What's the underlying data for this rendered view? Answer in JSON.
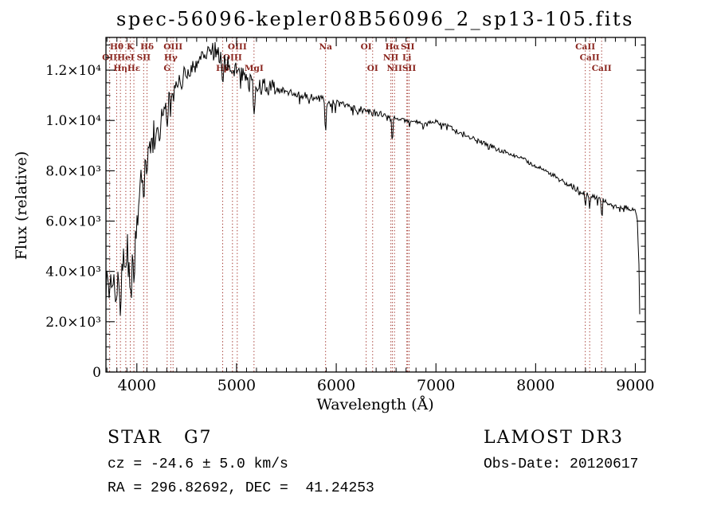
{
  "footer": {
    "class_label": "STAR   G7",
    "survey": "LAMOST DR3",
    "cz": "cz = -24.6 ± 5.0 km/s",
    "obs_date": "Obs-Date: 20120617",
    "coords": "RA = 296.82692, DEC =  41.24253"
  },
  "chart_data": {
    "type": "line",
    "title": "spec-56096-kepler08B56096_2_sp13-105.fits",
    "xlabel": "Wavelength (Å)",
    "ylabel": "Flux (relative)",
    "xlim": [
      3690,
      9100
    ],
    "ylim": [
      0,
      13300
    ],
    "grid": false,
    "x_ticks": [
      4000,
      5000,
      6000,
      7000,
      8000,
      9000
    ],
    "x_minor_step": 100,
    "y_ticks": [
      [
        0,
        "0"
      ],
      [
        2000,
        "2.0×10³"
      ],
      [
        4000,
        "4.0×10³"
      ],
      [
        6000,
        "6.0×10³"
      ],
      [
        8000,
        "8.0×10³"
      ],
      [
        10000,
        "1.0×10⁴"
      ],
      [
        12000,
        "1.2×10⁴"
      ]
    ],
    "y_minor_step": 500,
    "line_color": "#000000",
    "marker_color": "#a03028",
    "label_color": "#8a251e",
    "spectral_lines": [
      {
        "label": "Hθ",
        "wavelength": 3798,
        "row": 0
      },
      {
        "label": "K",
        "wavelength": 3934,
        "row": 0
      },
      {
        "label": "Hδ",
        "wavelength": 4102,
        "row": 0
      },
      {
        "label": "OIII",
        "wavelength": 4363,
        "row": 0
      },
      {
        "label": "OIII",
        "wavelength": 5007,
        "row": 0
      },
      {
        "label": "Na",
        "wavelength": 5893,
        "row": 0
      },
      {
        "label": "OI",
        "wavelength": 6300,
        "row": 0
      },
      {
        "label": "Hα",
        "wavelength": 6563,
        "row": 0
      },
      {
        "label": "SII",
        "wavelength": 6716,
        "row": 0
      },
      {
        "label": "CaII",
        "wavelength": 8498,
        "row": 0
      },
      {
        "label": "OII",
        "wavelength": 3727,
        "row": 1
      },
      {
        "label": "HeI",
        "wavelength": 3889,
        "row": 1
      },
      {
        "label": "SII",
        "wavelength": 4068,
        "row": 1
      },
      {
        "label": "Hγ",
        "wavelength": 4340,
        "row": 1
      },
      {
        "label": "OIII",
        "wavelength": 4959,
        "row": 1
      },
      {
        "label": "NII",
        "wavelength": 6548,
        "row": 1
      },
      {
        "label": "Li",
        "wavelength": 6708,
        "row": 1
      },
      {
        "label": "CaII",
        "wavelength": 8542,
        "row": 1
      },
      {
        "label": "Hη",
        "wavelength": 3835,
        "row": 2
      },
      {
        "label": "Hε",
        "wavelength": 3970,
        "row": 2
      },
      {
        "label": "G",
        "wavelength": 4304,
        "row": 2
      },
      {
        "label": "Hβ",
        "wavelength": 4861,
        "row": 2
      },
      {
        "label": "MgI",
        "wavelength": 5175,
        "row": 2
      },
      {
        "label": "OI",
        "wavelength": 6365,
        "row": 2
      },
      {
        "label": "NII",
        "wavelength": 6584,
        "row": 2
      },
      {
        "label": "SII",
        "wavelength": 6731,
        "row": 2
      },
      {
        "label": "CaII",
        "wavelength": 8662,
        "row": 2
      }
    ],
    "noise": {
      "seed": 1337,
      "regions": [
        [
          4000,
          650
        ],
        [
          4300,
          380
        ],
        [
          5400,
          320
        ],
        [
          6500,
          150
        ],
        [
          8300,
          90
        ],
        [
          9200,
          115
        ]
      ]
    },
    "series": [
      {
        "name": "flux",
        "points": [
          [
            3690,
            3200
          ],
          [
            3700,
            4000
          ],
          [
            3715,
            3400
          ],
          [
            3727,
            2700
          ],
          [
            3740,
            3900
          ],
          [
            3755,
            3500
          ],
          [
            3770,
            4300
          ],
          [
            3785,
            3600
          ],
          [
            3798,
            3000
          ],
          [
            3812,
            4200
          ],
          [
            3825,
            3700
          ],
          [
            3835,
            2300
          ],
          [
            3848,
            4200
          ],
          [
            3860,
            4700
          ],
          [
            3875,
            4100
          ],
          [
            3889,
            3600
          ],
          [
            3902,
            5000
          ],
          [
            3920,
            4400
          ],
          [
            3934,
            2700
          ],
          [
            3948,
            4900
          ],
          [
            3960,
            4300
          ],
          [
            3970,
            3300
          ],
          [
            3982,
            5200
          ],
          [
            3995,
            5800
          ],
          [
            4010,
            6300
          ],
          [
            4025,
            7000
          ],
          [
            4040,
            8200
          ],
          [
            4055,
            7600
          ],
          [
            4068,
            7200
          ],
          [
            4080,
            8800
          ],
          [
            4092,
            8500
          ],
          [
            4102,
            7900
          ],
          [
            4115,
            9200
          ],
          [
            4130,
            8900
          ],
          [
            4150,
            9100
          ],
          [
            4170,
            9700
          ],
          [
            4190,
            9400
          ],
          [
            4210,
            10100
          ],
          [
            4227,
            9200
          ],
          [
            4245,
            10400
          ],
          [
            4260,
            10200
          ],
          [
            4280,
            10700
          ],
          [
            4292,
            10500
          ],
          [
            4304,
            9400
          ],
          [
            4318,
            10800
          ],
          [
            4330,
            10900
          ],
          [
            4340,
            10100
          ],
          [
            4352,
            11200
          ],
          [
            4365,
            10900
          ],
          [
            4380,
            11400
          ],
          [
            4400,
            11200
          ],
          [
            4420,
            11600
          ],
          [
            4445,
            11400
          ],
          [
            4470,
            11800
          ],
          [
            4500,
            12000
          ],
          [
            4530,
            11900
          ],
          [
            4560,
            12300
          ],
          [
            4590,
            12100
          ],
          [
            4620,
            12500
          ],
          [
            4650,
            12600
          ],
          [
            4680,
            12800
          ],
          [
            4710,
            12700
          ],
          [
            4740,
            12800
          ],
          [
            4770,
            12900
          ],
          [
            4800,
            12700
          ],
          [
            4825,
            12600
          ],
          [
            4848,
            12500
          ],
          [
            4861,
            11200
          ],
          [
            4874,
            12400
          ],
          [
            4900,
            12300
          ],
          [
            4930,
            12200
          ],
          [
            4959,
            12000
          ],
          [
            4985,
            12100
          ],
          [
            5007,
            11900
          ],
          [
            5030,
            12000
          ],
          [
            5060,
            11800
          ],
          [
            5090,
            11700
          ],
          [
            5120,
            11600
          ],
          [
            5145,
            11500
          ],
          [
            5160,
            11400
          ],
          [
            5175,
            10400
          ],
          [
            5192,
            11400
          ],
          [
            5220,
            11500
          ],
          [
            5250,
            11300
          ],
          [
            5290,
            11400
          ],
          [
            5330,
            11300
          ],
          [
            5380,
            11300
          ],
          [
            5440,
            11200
          ],
          [
            5500,
            11200
          ],
          [
            5560,
            11100
          ],
          [
            5620,
            11050
          ],
          [
            5680,
            11000
          ],
          [
            5740,
            10950
          ],
          [
            5800,
            10900
          ],
          [
            5845,
            10850
          ],
          [
            5880,
            10800
          ],
          [
            5893,
            9400
          ],
          [
            5906,
            10750
          ],
          [
            5940,
            10750
          ],
          [
            5980,
            10700
          ],
          [
            6030,
            10650
          ],
          [
            6080,
            10600
          ],
          [
            6130,
            10550
          ],
          [
            6180,
            10500
          ],
          [
            6230,
            10450
          ],
          [
            6280,
            10380
          ],
          [
            6320,
            10350
          ],
          [
            6365,
            10300
          ],
          [
            6410,
            10250
          ],
          [
            6460,
            10200
          ],
          [
            6510,
            10150
          ],
          [
            6550,
            10100
          ],
          [
            6563,
            9000
          ],
          [
            6576,
            10100
          ],
          [
            6620,
            10050
          ],
          [
            6670,
            10000
          ],
          [
            6720,
            9980
          ],
          [
            6770,
            9960
          ],
          [
            6820,
            9940
          ],
          [
            6860,
            9900
          ],
          [
            6870,
            9550
          ],
          [
            6885,
            9900
          ],
          [
            6930,
            9950
          ],
          [
            6980,
            9980
          ],
          [
            7000,
            9960
          ],
          [
            7060,
            9860
          ],
          [
            7120,
            9760
          ],
          [
            7180,
            9650
          ],
          [
            7240,
            9550
          ],
          [
            7300,
            9420
          ],
          [
            7360,
            9300
          ],
          [
            7420,
            9200
          ],
          [
            7480,
            9100
          ],
          [
            7540,
            9000
          ],
          [
            7600,
            8880
          ],
          [
            7640,
            8780
          ],
          [
            7680,
            8800
          ],
          [
            7740,
            8700
          ],
          [
            7800,
            8600
          ],
          [
            7860,
            8480
          ],
          [
            7920,
            8360
          ],
          [
            7980,
            8240
          ],
          [
            8040,
            8100
          ],
          [
            8100,
            7980
          ],
          [
            8160,
            7860
          ],
          [
            8220,
            7720
          ],
          [
            8280,
            7580
          ],
          [
            8340,
            7440
          ],
          [
            8400,
            7300
          ],
          [
            8450,
            7200
          ],
          [
            8485,
            7150
          ],
          [
            8498,
            6500
          ],
          [
            8512,
            7100
          ],
          [
            8530,
            7050
          ],
          [
            8542,
            6400
          ],
          [
            8556,
            7000
          ],
          [
            8600,
            6950
          ],
          [
            8650,
            6850
          ],
          [
            8662,
            6200
          ],
          [
            8676,
            6800
          ],
          [
            8720,
            6750
          ],
          [
            8780,
            6680
          ],
          [
            8840,
            6600
          ],
          [
            8900,
            6550
          ],
          [
            8950,
            6500
          ],
          [
            8990,
            6450
          ],
          [
            9005,
            6350
          ],
          [
            9020,
            6000
          ],
          [
            9035,
            4500
          ],
          [
            9048,
            1300
          ]
        ]
      }
    ]
  }
}
